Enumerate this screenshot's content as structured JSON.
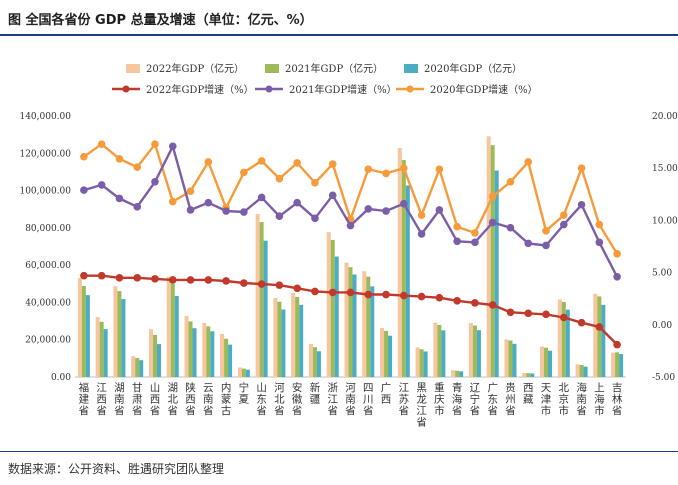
{
  "figure": {
    "title": "图  全国各省份 GDP 总量及增速（单位：亿元、%）",
    "source": "数据来源：公开资料、胜遇研究团队整理"
  },
  "colors": {
    "bar_2022": "#f7c59e",
    "bar_2021": "#9bbb59",
    "bar_2020": "#4bacc6",
    "line_2022": "#c0392b",
    "line_2021": "#7b5ea7",
    "line_2020": "#f79a3a",
    "rule": "#1c3f7c"
  },
  "chart_data": {
    "type": "bar",
    "categories": [
      "福建省",
      "江西省",
      "湖南省",
      "甘肃省",
      "山西省",
      "湖北省",
      "陕西省",
      "云南省",
      "内蒙古",
      "宁夏",
      "山东省",
      "河北省",
      "安徽省",
      "新疆",
      "浙江省",
      "河南省",
      "四川省",
      "广西",
      "江苏省",
      "黑龙江省",
      "重庆市",
      "青海省",
      "辽宁省",
      "广东省",
      "贵州省",
      "西藏",
      "天津市",
      "北京市",
      "海南省",
      "上海市",
      "吉林省"
    ],
    "series": [
      {
        "name": "2022年GDP（亿元）",
        "type": "bar",
        "axis": "left",
        "values": [
          53110,
          32075,
          48670,
          11202,
          25643,
          53735,
          32773,
          28954,
          23159,
          5070,
          87435,
          42370,
          45045,
          17741,
          77715,
          61345,
          56750,
          26301,
          122876,
          15901,
          29129,
          3610,
          28975,
          129119,
          20165,
          2133,
          16311,
          41611,
          6818,
          44653,
          13070
        ]
      },
      {
        "name": "2021年GDP（亿元）",
        "type": "bar",
        "axis": "left",
        "values": [
          48810,
          29620,
          46063,
          10243,
          22590,
          50013,
          29801,
          27147,
          20514,
          4522,
          83096,
          40391,
          42959,
          15984,
          73516,
          58887,
          53851,
          24741,
          116364,
          14879,
          27894,
          3347,
          27584,
          124370,
          19586,
          2080,
          15695,
          40270,
          6475,
          43215,
          13236
        ]
      },
      {
        "name": "2020年GDP（亿元）",
        "type": "bar",
        "axis": "left",
        "values": [
          43904,
          25692,
          41782,
          9017,
          17652,
          43443,
          26182,
          24522,
          17360,
          3921,
          73129,
          36207,
          38681,
          13798,
          64613,
          54997,
          48599,
          22157,
          102719,
          13698,
          25003,
          3006,
          25115,
          110761,
          17827,
          1903,
          14084,
          36103,
          5532,
          38701,
          12311
        ]
      },
      {
        "name": "2022年GDP增速（%）",
        "type": "line",
        "axis": "right",
        "values": [
          4.7,
          4.7,
          4.5,
          4.5,
          4.4,
          4.3,
          4.3,
          4.3,
          4.2,
          4.0,
          3.9,
          3.8,
          3.5,
          3.2,
          3.1,
          3.1,
          2.9,
          2.9,
          2.8,
          2.7,
          2.6,
          2.3,
          2.1,
          1.9,
          1.2,
          1.1,
          1.0,
          0.7,
          0.2,
          -0.2,
          -1.9
        ]
      },
      {
        "name": "2021年GDP增速（%）",
        "type": "line",
        "axis": "right",
        "values": [
          12.9,
          13.4,
          12.1,
          11.3,
          13.7,
          17.1,
          11.0,
          11.7,
          10.9,
          10.8,
          12.2,
          10.4,
          11.7,
          10.2,
          12.4,
          9.5,
          11.1,
          10.9,
          11.6,
          8.7,
          11.0,
          8.0,
          7.9,
          9.8,
          9.3,
          7.8,
          7.6,
          9.6,
          11.5,
          7.9,
          4.6
        ]
      },
      {
        "name": "2020年GDP增速（%）",
        "type": "line",
        "axis": "right",
        "values": [
          16.1,
          17.3,
          15.9,
          15.1,
          17.3,
          11.8,
          12.8,
          15.6,
          11.2,
          14.6,
          15.7,
          14.0,
          15.5,
          13.6,
          15.4,
          10.1,
          14.9,
          14.5,
          15.0,
          10.5,
          14.9,
          9.4,
          8.8,
          12.3,
          13.7,
          15.6,
          9.0,
          10.5,
          15.0,
          9.6,
          6.8
        ]
      }
    ],
    "y_left": {
      "ylim": [
        0,
        140000
      ],
      "ticks": [
        "0.00",
        "20,000.00",
        "40,000.00",
        "60,000.00",
        "80,000.00",
        "100,000.00",
        "120,000.00",
        "140,000.00"
      ]
    },
    "y_right": {
      "ylim": [
        -5,
        20
      ],
      "ticks": [
        "-5.00",
        "0.00",
        "5.00",
        "10.00",
        "15.00",
        "20.00"
      ]
    },
    "legend_position": "top",
    "grid": false
  }
}
